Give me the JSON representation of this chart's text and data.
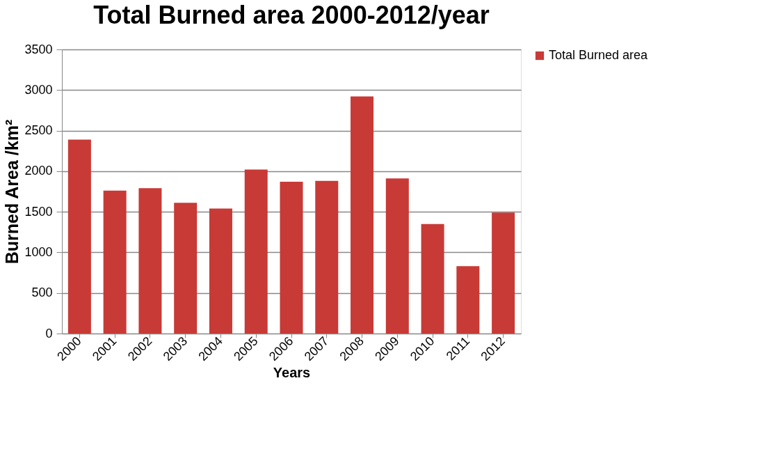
{
  "chart_data": {
    "type": "bar",
    "title": "Total Burned area 2000-2012/year",
    "xlabel": "Years",
    "ylabel": "Burned Area /km²",
    "categories": [
      "2000",
      "2001",
      "2002",
      "2003",
      "2004",
      "2005",
      "2006",
      "2007",
      "2008",
      "2009",
      "2010",
      "2011",
      "2012"
    ],
    "series": [
      {
        "name": "Total Burned area",
        "color": "#c83a36",
        "values": [
          2390,
          1760,
          1790,
          1610,
          1540,
          2020,
          1870,
          1880,
          2920,
          1910,
          1350,
          830,
          1490
        ]
      }
    ],
    "ylim": [
      0,
      3500
    ],
    "yticks": [
      0,
      500,
      1000,
      1500,
      2000,
      2500,
      3000,
      3500
    ],
    "grid": "y",
    "legend": "right"
  }
}
